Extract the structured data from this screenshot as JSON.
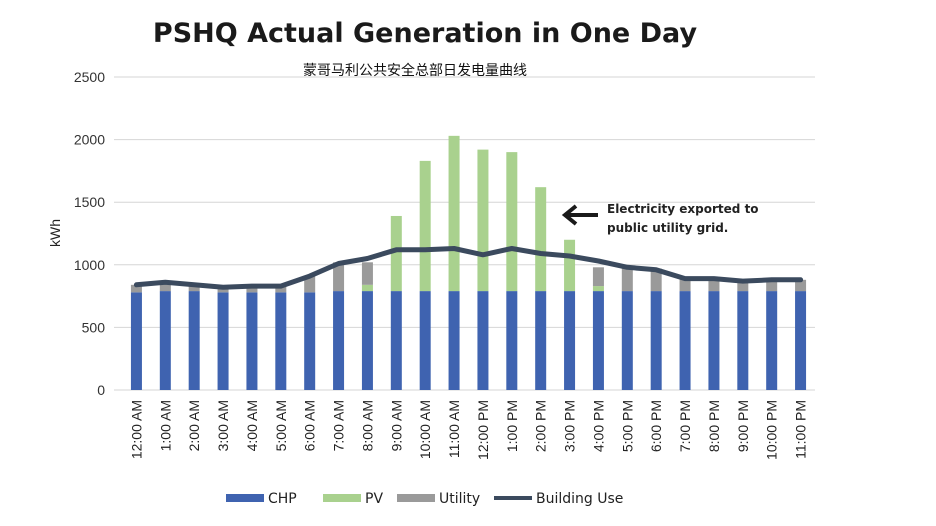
{
  "chart_data": {
    "type": "bar",
    "title": "PSHQ Actual Generation in One Day",
    "subtitle": "蒙哥马利公共安全总部日发电量曲线",
    "ylabel": "kWh",
    "xlabel": "",
    "ylim": [
      0,
      2500
    ],
    "yticks": [
      0,
      500,
      1000,
      1500,
      2000,
      2500
    ],
    "grid": true,
    "legend_position": "bottom",
    "categories": [
      "12:00 AM",
      "1:00 AM",
      "2:00 AM",
      "3:00 AM",
      "4:00 AM",
      "5:00 AM",
      "6:00 AM",
      "7:00 AM",
      "8:00 AM",
      "9:00 AM",
      "10:00 AM",
      "11:00 AM",
      "12:00 PM",
      "1:00 PM",
      "2:00 PM",
      "3:00 PM",
      "4:00 PM",
      "5:00 PM",
      "6:00 PM",
      "7:00 PM",
      "8:00 PM",
      "9:00 PM",
      "10:00 PM",
      "11:00 PM"
    ],
    "series": [
      {
        "name": "CHP",
        "kind": "bar",
        "color": "#3f63b0",
        "values": [
          780,
          790,
          790,
          780,
          780,
          780,
          780,
          790,
          790,
          790,
          790,
          790,
          790,
          790,
          790,
          790,
          790,
          790,
          790,
          790,
          790,
          790,
          790,
          790
        ]
      },
      {
        "name": "PV",
        "kind": "bar",
        "color": "#a9d18e",
        "values": [
          0,
          0,
          0,
          0,
          0,
          0,
          0,
          0,
          50,
          600,
          1040,
          1240,
          1130,
          1110,
          830,
          410,
          40,
          0,
          0,
          0,
          0,
          0,
          0,
          0
        ]
      },
      {
        "name": "Utility",
        "kind": "bar",
        "color": "#9a9a9a",
        "values": [
          60,
          70,
          50,
          40,
          50,
          50,
          130,
          230,
          180,
          0,
          0,
          0,
          0,
          0,
          0,
          0,
          150,
          190,
          180,
          100,
          100,
          80,
          90,
          90
        ]
      },
      {
        "name": "Building Use",
        "kind": "line",
        "color": "#3b4a5e",
        "values": [
          840,
          860,
          840,
          820,
          830,
          830,
          910,
          1010,
          1050,
          1120,
          1120,
          1130,
          1080,
          1130,
          1090,
          1070,
          1030,
          980,
          960,
          890,
          890,
          870,
          880,
          880
        ]
      }
    ],
    "annotation": {
      "text_line1": "Electricity exported to",
      "text_line2": "public utility grid."
    }
  }
}
